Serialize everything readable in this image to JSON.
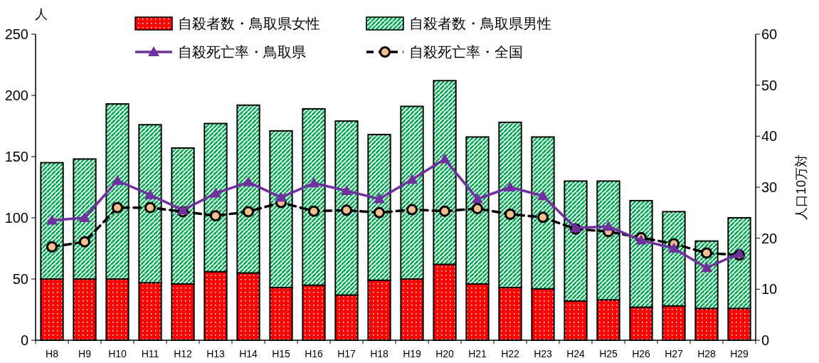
{
  "chart_data": {
    "type": "bar",
    "stacked": true,
    "ylabel": "人",
    "y2label": "人口10万対",
    "legend": "top",
    "grid": false,
    "categories": [
      "H8",
      "H9",
      "H10",
      "H11",
      "H12",
      "H13",
      "H14",
      "H15",
      "H16",
      "H17",
      "H18",
      "H19",
      "H20",
      "H21",
      "H22",
      "H23",
      "H24",
      "H25",
      "H26",
      "H27",
      "H28",
      "H29"
    ],
    "ylim": [
      0,
      250
    ],
    "yticks": [
      0,
      50,
      100,
      150,
      200,
      250
    ],
    "y2lim": [
      0,
      60
    ],
    "y2ticks": [
      0,
      10,
      20,
      30,
      40,
      50,
      60
    ],
    "series": [
      {
        "name": "自殺者数・鳥取県女性",
        "color": "#ff0000",
        "values": [
          50,
          50,
          50,
          47,
          46,
          56,
          55,
          43,
          45,
          37,
          49,
          50,
          62,
          46,
          43,
          42,
          32,
          33,
          27,
          28,
          26,
          26
        ]
      },
      {
        "name": "自殺者数・鳥取県男性",
        "color": "#00a550",
        "values": [
          95,
          98,
          143,
          129,
          111,
          121,
          137,
          128,
          144,
          142,
          119,
          141,
          150,
          120,
          135,
          124,
          98,
          97,
          87,
          77,
          55,
          74
        ]
      },
      {
        "name": "自殺死亡率・鳥取県",
        "type": "line",
        "axis": "y2",
        "color": "#7030a0",
        "marker": "triangle",
        "line_style": "solid",
        "values": [
          23.5,
          24,
          31.3,
          28.5,
          25.5,
          28.8,
          31,
          28,
          30.8,
          29.3,
          27.7,
          31.5,
          35.5,
          27.7,
          30,
          28.3,
          22,
          22.3,
          19.6,
          18,
          14.2,
          17
        ]
      },
      {
        "name": "自殺死亡率・全国",
        "type": "line",
        "axis": "y2",
        "color": "#000000",
        "marker": "circle",
        "line_style": "dashed",
        "values": [
          18.3,
          19.3,
          26,
          26,
          25.2,
          24.4,
          25.2,
          27,
          25.3,
          25.5,
          25,
          25.6,
          25.3,
          25.8,
          24.7,
          24.1,
          21.8,
          21.3,
          20.1,
          18.9,
          17.1,
          16.7
        ]
      }
    ]
  }
}
